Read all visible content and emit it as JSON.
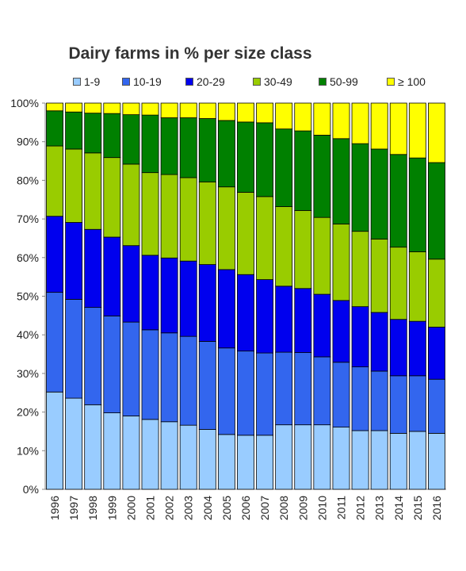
{
  "chart_data": {
    "type": "bar",
    "stacked": true,
    "title": "Dairy farms in % per size class",
    "xlabel": "",
    "ylabel": "",
    "ylim": [
      0,
      100
    ],
    "y_ticks": [
      "0%",
      "10%",
      "20%",
      "30%",
      "40%",
      "50%",
      "60%",
      "70%",
      "80%",
      "90%",
      "100%"
    ],
    "grid": false,
    "legend_position": "top",
    "categories": [
      "1996",
      "1997",
      "1998",
      "1999",
      "2000",
      "2001",
      "2002",
      "2003",
      "2004",
      "2005",
      "2006",
      "2007",
      "2008",
      "2009",
      "2010",
      "2011",
      "2012",
      "2013",
      "2014",
      "2015",
      "2016"
    ],
    "series": [
      {
        "name": "1-9",
        "color": "#99ccff",
        "values": [
          25.2,
          23.6,
          21.9,
          19.8,
          19.0,
          18.1,
          17.5,
          16.6,
          15.5,
          14.2,
          14.0,
          14.0,
          16.7,
          16.7,
          16.7,
          16.1,
          15.2,
          15.2,
          14.5,
          15.0,
          14.5
        ]
      },
      {
        "name": "10-19",
        "color": "#3366ee",
        "values": [
          25.8,
          25.6,
          25.2,
          25.1,
          24.3,
          23.2,
          23.0,
          23.0,
          22.8,
          22.4,
          21.8,
          21.3,
          18.8,
          18.7,
          17.6,
          16.8,
          16.5,
          15.4,
          14.9,
          14.4,
          14.0
        ]
      },
      {
        "name": "20-29",
        "color": "#0000ee",
        "values": [
          19.7,
          19.9,
          20.2,
          20.4,
          19.8,
          19.3,
          19.4,
          19.5,
          19.9,
          20.3,
          19.8,
          19.0,
          17.1,
          16.6,
          16.2,
          16.0,
          15.6,
          15.2,
          14.6,
          14.1,
          13.5
        ]
      },
      {
        "name": "30-49",
        "color": "#99cc00",
        "values": [
          18.2,
          19.0,
          19.8,
          20.6,
          21.1,
          21.4,
          21.6,
          21.6,
          21.4,
          21.4,
          21.3,
          21.5,
          20.6,
          20.2,
          19.9,
          19.8,
          19.5,
          19.0,
          18.7,
          18.0,
          17.6
        ]
      },
      {
        "name": "50-99",
        "color": "#008000",
        "values": [
          9.1,
          9.6,
          10.3,
          11.4,
          12.8,
          14.9,
          14.7,
          15.5,
          16.4,
          17.2,
          18.2,
          19.1,
          20.1,
          20.6,
          21.3,
          22.1,
          22.7,
          23.3,
          24.0,
          24.3,
          25.0
        ]
      },
      {
        "name": "≥ 100",
        "color": "#ffff00",
        "values": [
          2.0,
          2.3,
          2.6,
          2.7,
          3.0,
          3.1,
          3.8,
          3.8,
          4.0,
          4.5,
          4.9,
          5.1,
          6.7,
          7.2,
          8.3,
          9.2,
          10.5,
          11.9,
          13.3,
          14.2,
          15.4
        ]
      }
    ]
  }
}
